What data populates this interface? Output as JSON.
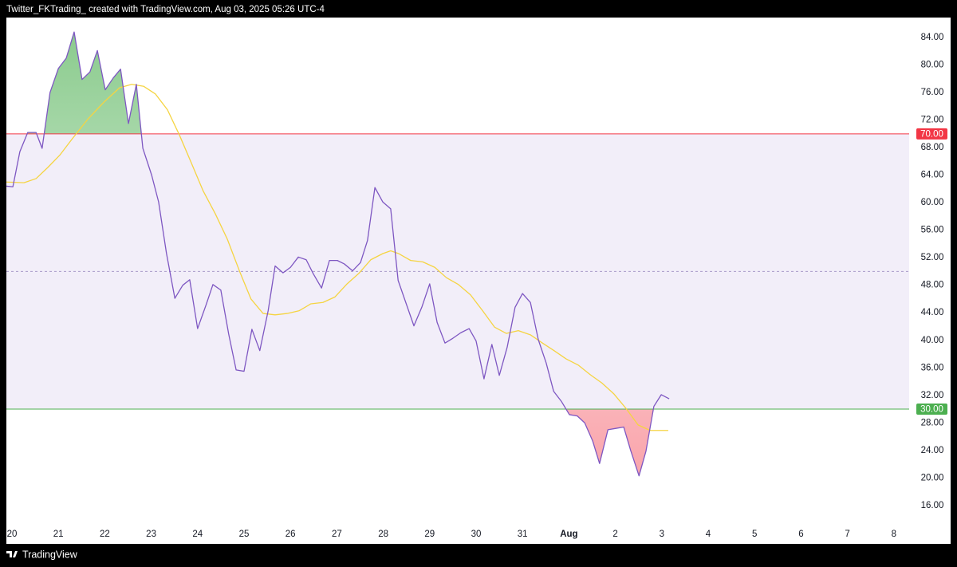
{
  "header_text": "Twitter_FKTrading_  created with TradingView.com, Aug 03, 2025 05:26 UTC-4",
  "footer_brand": "TradingView",
  "chart_data": {
    "type": "line",
    "xlim": [
      -0.12,
      19.33
    ],
    "ylim": [
      13.2,
      86.9
    ],
    "xticks": [
      {
        "value": 0,
        "label": "20"
      },
      {
        "value": 1,
        "label": "21"
      },
      {
        "value": 2,
        "label": "22"
      },
      {
        "value": 3,
        "label": "23"
      },
      {
        "value": 4,
        "label": "24"
      },
      {
        "value": 5,
        "label": "25"
      },
      {
        "value": 6,
        "label": "26"
      },
      {
        "value": 7,
        "label": "27"
      },
      {
        "value": 8,
        "label": "28"
      },
      {
        "value": 9,
        "label": "29"
      },
      {
        "value": 10,
        "label": "30"
      },
      {
        "value": 11,
        "label": "31"
      },
      {
        "value": 12,
        "label": "Aug"
      },
      {
        "value": 13,
        "label": "2"
      },
      {
        "value": 14,
        "label": "3"
      },
      {
        "value": 15,
        "label": "4"
      },
      {
        "value": 16,
        "label": "5"
      },
      {
        "value": 17,
        "label": "6"
      },
      {
        "value": 18,
        "label": "7"
      },
      {
        "value": 19,
        "label": "8"
      }
    ],
    "yticks": [
      {
        "value": 16,
        "label": "16.00"
      },
      {
        "value": 20,
        "label": "20.00"
      },
      {
        "value": 24,
        "label": "24.00"
      },
      {
        "value": 28,
        "label": "28.00"
      },
      {
        "value": 32,
        "label": "32.00"
      },
      {
        "value": 36,
        "label": "36.00"
      },
      {
        "value": 40,
        "label": "40.00"
      },
      {
        "value": 44,
        "label": "44.00"
      },
      {
        "value": 48,
        "label": "48.00"
      },
      {
        "value": 52,
        "label": "52.00"
      },
      {
        "value": 56,
        "label": "56.00"
      },
      {
        "value": 60,
        "label": "60.00"
      },
      {
        "value": 64,
        "label": "64.00"
      },
      {
        "value": 68,
        "label": "68.00"
      },
      {
        "value": 72,
        "label": "72.00"
      },
      {
        "value": 76,
        "label": "76.00"
      },
      {
        "value": 80,
        "label": "80.00"
      },
      {
        "value": 84,
        "label": "84.00"
      }
    ],
    "levels": [
      {
        "value": 70,
        "label": "70.00",
        "color": "#f23645"
      },
      {
        "value": 30,
        "label": "30.00",
        "color": "#4caf50"
      }
    ],
    "middle_level": 50,
    "band_color": "#7e57c2",
    "series": [
      {
        "color": "#7e57c2",
        "x": [
          -0.12,
          0.02,
          0.17,
          0.34,
          0.52,
          0.65,
          0.82,
          1.0,
          1.17,
          1.34,
          1.51,
          1.68,
          1.84,
          2.01,
          2.18,
          2.34,
          2.51,
          2.68,
          2.82,
          3.01,
          3.16,
          3.33,
          3.51,
          3.68,
          3.83,
          4.0,
          4.18,
          4.33,
          4.5,
          4.67,
          4.83,
          5.0,
          5.17,
          5.34,
          5.52,
          5.67,
          5.84,
          6.0,
          6.17,
          6.34,
          6.49,
          6.67,
          6.84,
          7.01,
          7.16,
          7.34,
          7.51,
          7.66,
          7.82,
          7.99,
          8.16,
          8.32,
          8.49,
          8.66,
          8.83,
          9.0,
          9.16,
          9.33,
          9.5,
          9.67,
          9.85,
          10.0,
          10.17,
          10.34,
          10.5,
          10.67,
          10.84,
          11.0,
          11.17,
          11.34,
          11.51,
          11.67,
          11.84,
          12.01,
          12.18,
          12.34,
          12.51,
          12.66,
          12.84,
          13.01,
          13.18,
          13.33,
          13.51,
          13.66,
          13.83,
          13.99,
          14.16
        ],
        "values": [
          62.4,
          62.3,
          67.4,
          70.2,
          70.2,
          67.9,
          76.0,
          79.5,
          81.0,
          84.8,
          77.9,
          79.0,
          82.1,
          76.4,
          78.1,
          79.4,
          71.5,
          77.2,
          67.9,
          64.0,
          60.1,
          52.6,
          46.1,
          48.0,
          48.8,
          41.7,
          45.1,
          48.1,
          47.3,
          40.9,
          35.7,
          35.5,
          41.6,
          38.5,
          44.3,
          50.8,
          49.8,
          50.6,
          52.1,
          51.7,
          49.7,
          47.6,
          51.6,
          51.6,
          51.1,
          50.1,
          51.3,
          54.5,
          62.2,
          60.1,
          59.1,
          48.7,
          45.4,
          42.1,
          44.8,
          48.2,
          42.6,
          39.6,
          40.3,
          41.1,
          41.7,
          39.9,
          34.4,
          39.4,
          34.9,
          39.0,
          44.8,
          46.8,
          45.5,
          40.1,
          36.7,
          32.6,
          31.1,
          29.2,
          29.0,
          28.0,
          25.4,
          22.1,
          27.0,
          27.2,
          27.4,
          24.0,
          20.3,
          23.9,
          30.4,
          32.1,
          31.5
        ]
      },
      {
        "color": "#f5d442",
        "x": [
          -0.12,
          0.26,
          0.52,
          0.77,
          1.03,
          1.29,
          1.63,
          1.98,
          2.32,
          2.58,
          2.84,
          3.09,
          3.35,
          3.61,
          3.87,
          4.12,
          4.38,
          4.64,
          4.9,
          5.15,
          5.41,
          5.67,
          5.93,
          6.19,
          6.44,
          6.7,
          6.96,
          7.22,
          7.47,
          7.73,
          7.99,
          8.16,
          8.33,
          8.59,
          8.85,
          9.11,
          9.36,
          9.62,
          9.88,
          10.14,
          10.4,
          10.65,
          10.91,
          11.17,
          11.43,
          11.68,
          11.94,
          12.2,
          12.46,
          12.71,
          12.97,
          13.23,
          13.49,
          13.75,
          14.14
        ],
        "values": [
          63.0,
          62.9,
          63.5,
          65.1,
          66.9,
          69.2,
          72.1,
          74.6,
          76.7,
          77.2,
          76.9,
          75.8,
          73.5,
          69.8,
          65.7,
          61.7,
          58.4,
          54.7,
          50.1,
          46.0,
          43.9,
          43.7,
          43.9,
          44.3,
          45.3,
          45.5,
          46.3,
          48.2,
          49.7,
          51.7,
          52.6,
          53.0,
          52.6,
          51.6,
          51.4,
          50.6,
          49.1,
          48.1,
          46.6,
          44.3,
          41.9,
          41.0,
          41.4,
          40.8,
          39.6,
          38.5,
          37.3,
          36.4,
          35.0,
          33.8,
          32.2,
          30.1,
          27.7,
          26.9,
          26.9
        ]
      }
    ]
  }
}
